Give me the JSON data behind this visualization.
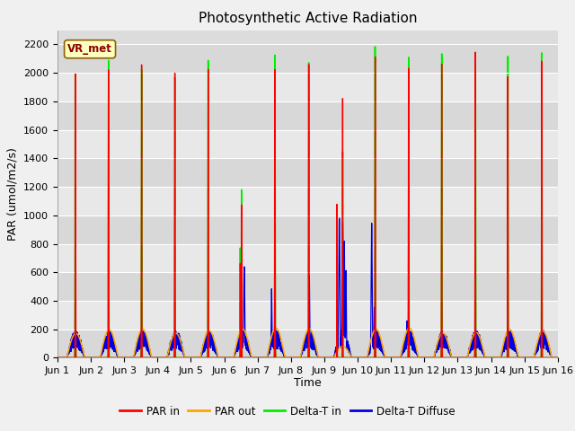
{
  "title": "Photosynthetic Active Radiation",
  "ylabel": "PAR (umol/m2/s)",
  "xlabel": "Time",
  "ylim": [
    0,
    2300
  ],
  "xlim": [
    0,
    15
  ],
  "bg_color": "#dcdcdc",
  "plot_bg_color": "#dcdcdc",
  "legend_label": "VR_met",
  "series_colors": {
    "par_in": "#ff0000",
    "par_out": "#ffa500",
    "delta_t_in": "#00ee00",
    "delta_t_diffuse": "#0000dd"
  },
  "x_tick_labels": [
    "Jun 1",
    "Jun 2",
    "Jun 3",
    "Jun 4",
    "Jun 5",
    "Jun 6",
    "Jun 7",
    "Jun 8",
    "Jun 9",
    "Jun 10",
    "Jun 11",
    "Jun 12",
    "Jun 13",
    "Jun 14",
    "Jun 15",
    "Jun 16"
  ],
  "x_tick_positions": [
    0,
    1,
    2,
    3,
    4,
    5,
    6,
    7,
    8,
    9,
    10,
    11,
    12,
    13,
    14,
    15
  ],
  "yticks": [
    0,
    200,
    400,
    600,
    800,
    1000,
    1200,
    1400,
    1600,
    1800,
    2000,
    2200
  ]
}
